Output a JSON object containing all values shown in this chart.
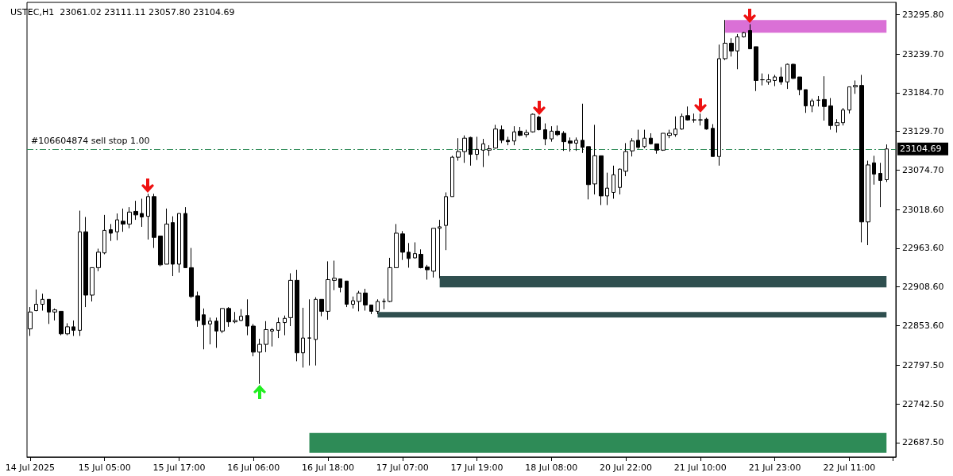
{
  "chart_data": {
    "type": "candlestick",
    "title": "USTEC,H1  23061.02 23111.11 23057.80 23104.69",
    "categories": [
      "14 Jul 2025",
      null,
      null,
      null,
      null,
      null,
      null,
      null,
      null,
      null,
      null,
      null,
      "15 Jul 05:00",
      null,
      null,
      null,
      null,
      null,
      null,
      null,
      null,
      null,
      null,
      null,
      "15 Jul 17:00",
      null,
      null,
      null,
      null,
      null,
      null,
      null,
      null,
      null,
      null,
      null,
      "16 Jul 06:00",
      null,
      null,
      null,
      null,
      null,
      null,
      null,
      null,
      null,
      null,
      null,
      "16 Jul 18:00",
      null,
      null,
      null,
      null,
      null,
      null,
      null,
      null,
      null,
      null,
      null,
      "17 Jul 07:00",
      null,
      null,
      null,
      null,
      null,
      null,
      null,
      null,
      null,
      null,
      null,
      "17 Jul 19:00",
      null,
      null,
      null,
      null,
      null,
      null,
      null,
      null,
      null,
      null,
      null,
      "18 Jul 08:00",
      null,
      null,
      null,
      null,
      null,
      null,
      null,
      null,
      null,
      null,
      null,
      "20 Jul 22:00",
      null,
      null,
      null,
      null,
      null,
      null,
      null,
      null,
      null,
      null,
      null,
      "21 Jul 10:00",
      null,
      null,
      null,
      null,
      null,
      null,
      null,
      null,
      null,
      null,
      null,
      "21 Jul 23:00",
      null,
      null,
      null,
      null,
      null,
      null,
      null,
      null,
      null,
      null,
      null,
      "22 Jul 11:00",
      null,
      null,
      null,
      null,
      null,
      null
    ],
    "ohlc": [
      [
        22849,
        22880,
        22839,
        22873
      ],
      [
        22875,
        22905,
        22874,
        22884
      ],
      [
        22884,
        22899,
        22875,
        22891
      ],
      [
        22891,
        22891,
        22856,
        22873
      ],
      [
        22873,
        22878,
        22861,
        22876
      ],
      [
        22874,
        22874,
        22840,
        22842
      ],
      [
        22842,
        22857,
        22840,
        22852
      ],
      [
        22852,
        22861,
        22839,
        22847
      ],
      [
        22847,
        23017,
        22839,
        22987
      ],
      [
        22987,
        23008,
        22880,
        22897
      ],
      [
        22897,
        22936,
        22888,
        22936
      ],
      [
        22936,
        22963,
        22931,
        22958
      ],
      [
        22957,
        23011,
        22955,
        22989
      ],
      [
        22990,
        22998,
        22974,
        22985
      ],
      [
        22987,
        23013,
        22975,
        23004
      ],
      [
        23002,
        23020,
        22987,
        22998
      ],
      [
        22998,
        23022,
        22992,
        23015
      ],
      [
        23016,
        23031,
        23004,
        23011
      ],
      [
        23013,
        23034,
        22994,
        23008
      ],
      [
        23009,
        23041,
        22976,
        23037
      ],
      [
        23037,
        23041,
        22964,
        22979
      ],
      [
        22981,
        22981,
        22938,
        22940
      ],
      [
        22941,
        23020,
        22941,
        22998
      ],
      [
        23000,
        23009,
        22924,
        22941
      ],
      [
        22941,
        23013,
        22929,
        23013
      ],
      [
        23013,
        23022,
        22936,
        22936
      ],
      [
        22936,
        22964,
        22893,
        22895
      ],
      [
        22896,
        22902,
        22852,
        22861
      ],
      [
        22869,
        22878,
        22820,
        22855
      ],
      [
        22856,
        22865,
        22827,
        22860
      ],
      [
        22860,
        22865,
        22822,
        22846
      ],
      [
        22846,
        22878,
        22843,
        22878
      ],
      [
        22878,
        22880,
        22852,
        22859
      ],
      [
        22859,
        22873,
        22857,
        22861
      ],
      [
        22861,
        22877,
        22860,
        22867
      ],
      [
        22868,
        22891,
        22840,
        22853
      ],
      [
        22853,
        22856,
        22810,
        22816
      ],
      [
        22816,
        22835,
        22771,
        22827
      ],
      [
        22827,
        22860,
        22816,
        22848
      ],
      [
        22846,
        22850,
        22824,
        22848
      ],
      [
        22847,
        22865,
        22836,
        22858
      ],
      [
        22858,
        22868,
        22840,
        22864
      ],
      [
        22865,
        22928,
        22853,
        22918
      ],
      [
        22918,
        22933,
        22803,
        22815
      ],
      [
        22815,
        22879,
        22794,
        22836
      ],
      [
        22836,
        22891,
        22797,
        22836
      ],
      [
        22834,
        22894,
        22797,
        22891
      ],
      [
        22891,
        22891,
        22867,
        22874
      ],
      [
        22874,
        22945,
        22862,
        22919
      ],
      [
        22918,
        22946,
        22904,
        22921
      ],
      [
        22920,
        22920,
        22901,
        22908
      ],
      [
        22917,
        22917,
        22880,
        22884
      ],
      [
        22884,
        22895,
        22878,
        22889
      ],
      [
        22888,
        22903,
        22874,
        22900
      ],
      [
        22900,
        22906,
        22875,
        22883
      ],
      [
        22883,
        22883,
        22870,
        22874
      ],
      [
        22874,
        22891,
        22870,
        22888
      ],
      [
        22888,
        22892,
        22877,
        22888
      ],
      [
        22888,
        22950,
        22887,
        22936
      ],
      [
        22936,
        22998,
        22936,
        22985
      ],
      [
        22984,
        22988,
        22947,
        22958
      ],
      [
        22958,
        22971,
        22936,
        22949
      ],
      [
        22950,
        22972,
        22949,
        22956
      ],
      [
        22955,
        22962,
        22935,
        22936
      ],
      [
        22937,
        22940,
        22919,
        22933
      ],
      [
        22931,
        22992,
        22922,
        22992
      ],
      [
        22992,
        23004,
        22921,
        22994
      ],
      [
        22996,
        23043,
        22961,
        23037
      ],
      [
        23037,
        23095,
        23037,
        23093
      ],
      [
        23093,
        23120,
        23088,
        23101
      ],
      [
        23101,
        23124,
        23085,
        23120
      ],
      [
        23121,
        23122,
        23081,
        23097
      ],
      [
        23097,
        23122,
        23089,
        23104
      ],
      [
        23103,
        23119,
        23079,
        23112
      ],
      [
        23103,
        23110,
        23095,
        23105
      ],
      [
        23106,
        23139,
        23105,
        23133
      ],
      [
        23132,
        23138,
        23113,
        23117
      ],
      [
        23117,
        23122,
        23110,
        23115
      ],
      [
        23116,
        23137,
        23110,
        23129
      ],
      [
        23130,
        23136,
        23123,
        23124
      ],
      [
        23125,
        23132,
        23121,
        23128
      ],
      [
        23129,
        23155,
        23128,
        23154
      ],
      [
        23150,
        23152,
        23131,
        23132
      ],
      [
        23132,
        23141,
        23110,
        23119
      ],
      [
        23119,
        23137,
        23115,
        23130
      ],
      [
        23130,
        23138,
        23123,
        23125
      ],
      [
        23127,
        23130,
        23102,
        23115
      ],
      [
        23116,
        23121,
        23101,
        23113
      ],
      [
        23113,
        23121,
        23102,
        23117
      ],
      [
        23117,
        23169,
        23099,
        23107
      ],
      [
        23108,
        23108,
        23033,
        23054
      ],
      [
        23055,
        23139,
        23040,
        23095
      ],
      [
        23095,
        23095,
        23025,
        23038
      ],
      [
        23038,
        23071,
        23025,
        23049
      ],
      [
        23043,
        23081,
        23034,
        23068
      ],
      [
        23050,
        23077,
        23040,
        23076
      ],
      [
        23073,
        23113,
        23066,
        23101
      ],
      [
        23102,
        23120,
        23094,
        23116
      ],
      [
        23117,
        23132,
        23105,
        23107
      ],
      [
        23108,
        23132,
        23106,
        23120
      ],
      [
        23120,
        23127,
        23111,
        23112
      ],
      [
        23112,
        23112,
        23098,
        23103
      ],
      [
        23103,
        23127,
        23102,
        23127
      ],
      [
        23124,
        23132,
        23120,
        23127
      ],
      [
        23125,
        23151,
        23122,
        23133
      ],
      [
        23133,
        23155,
        23132,
        23151
      ],
      [
        23152,
        23165,
        23145,
        23146
      ],
      [
        23146,
        23155,
        23142,
        23146
      ],
      [
        23146,
        23155,
        23138,
        23146
      ],
      [
        23147,
        23149,
        23132,
        23133
      ],
      [
        23134,
        23140,
        23094,
        23094
      ],
      [
        23094,
        23253,
        23081,
        23233
      ],
      [
        23233,
        23288,
        23231,
        23255
      ],
      [
        23255,
        23262,
        23236,
        23244
      ],
      [
        23244,
        23268,
        23218,
        23264
      ],
      [
        23264,
        23271,
        23263,
        23270
      ],
      [
        23273,
        23282,
        23247,
        23247
      ],
      [
        23250,
        23250,
        23187,
        23202
      ],
      [
        23203,
        23212,
        23195,
        23203
      ],
      [
        23200,
        23211,
        23196,
        23203
      ],
      [
        23202,
        23210,
        23194,
        23207
      ],
      [
        23207,
        23221,
        23196,
        23200
      ],
      [
        23200,
        23226,
        23190,
        23225
      ],
      [
        23225,
        23226,
        23204,
        23205
      ],
      [
        23207,
        23207,
        23181,
        23189
      ],
      [
        23189,
        23189,
        23156,
        23166
      ],
      [
        23166,
        23176,
        23157,
        23173
      ],
      [
        23174,
        23180,
        23165,
        23174
      ],
      [
        23175,
        23208,
        23145,
        23165
      ],
      [
        23166,
        23177,
        23132,
        23138
      ],
      [
        23138,
        23147,
        23128,
        23142
      ],
      [
        23142,
        23163,
        23138,
        23160
      ],
      [
        23160,
        23193,
        23155,
        23193
      ],
      [
        23193,
        23202,
        23183,
        23195
      ],
      [
        23195,
        23210,
        22972,
        23001
      ],
      [
        23001,
        23088,
        22968,
        23082
      ],
      [
        23085,
        23095,
        23054,
        23069
      ],
      [
        23070,
        23085,
        23022,
        23060
      ],
      [
        23061.02,
        23111.11,
        23057.8,
        23104.69
      ]
    ],
    "ylim": [
      22667,
      23313
    ],
    "yticks": [
      {
        "value": 22687.5,
        "label": "22687.50"
      },
      {
        "value": 22742.5,
        "label": "22742.50"
      },
      {
        "value": 22797.5,
        "label": "22797.50"
      },
      {
        "value": 22853.6,
        "label": "22853.60"
      },
      {
        "value": 22908.6,
        "label": "22908.60"
      },
      {
        "value": 22963.6,
        "label": "22963.60"
      },
      {
        "value": 23018.6,
        "label": "23018.60"
      },
      {
        "value": 23074.7,
        "label": "23074.70"
      },
      {
        "value": 23129.7,
        "label": "23129.70"
      },
      {
        "value": 23184.7,
        "label": "23184.70"
      },
      {
        "value": 23239.7,
        "label": "23239.70"
      },
      {
        "value": 23295.8,
        "label": "23295.80"
      }
    ],
    "ref_lines": [
      {
        "axis": "y",
        "value": 23104.69,
        "label": "#106604874 sell stop 1.00",
        "color": "#2e8b57",
        "line_style": "dashed"
      }
    ],
    "bands": [
      {
        "axis": "y",
        "from": 23270,
        "to": 23288,
        "color": "#da70d6"
      },
      {
        "axis": "y",
        "from": 22908,
        "to": 22924,
        "color": "#2f4f4f"
      },
      {
        "axis": "y",
        "from": 22865,
        "to": 22873,
        "color": "#2f4f4f"
      },
      {
        "axis": "y",
        "from": 22673,
        "to": 22701,
        "color": "#2e8b57"
      }
    ],
    "annotations": [
      "23104.69"
    ],
    "grid": false
  }
}
